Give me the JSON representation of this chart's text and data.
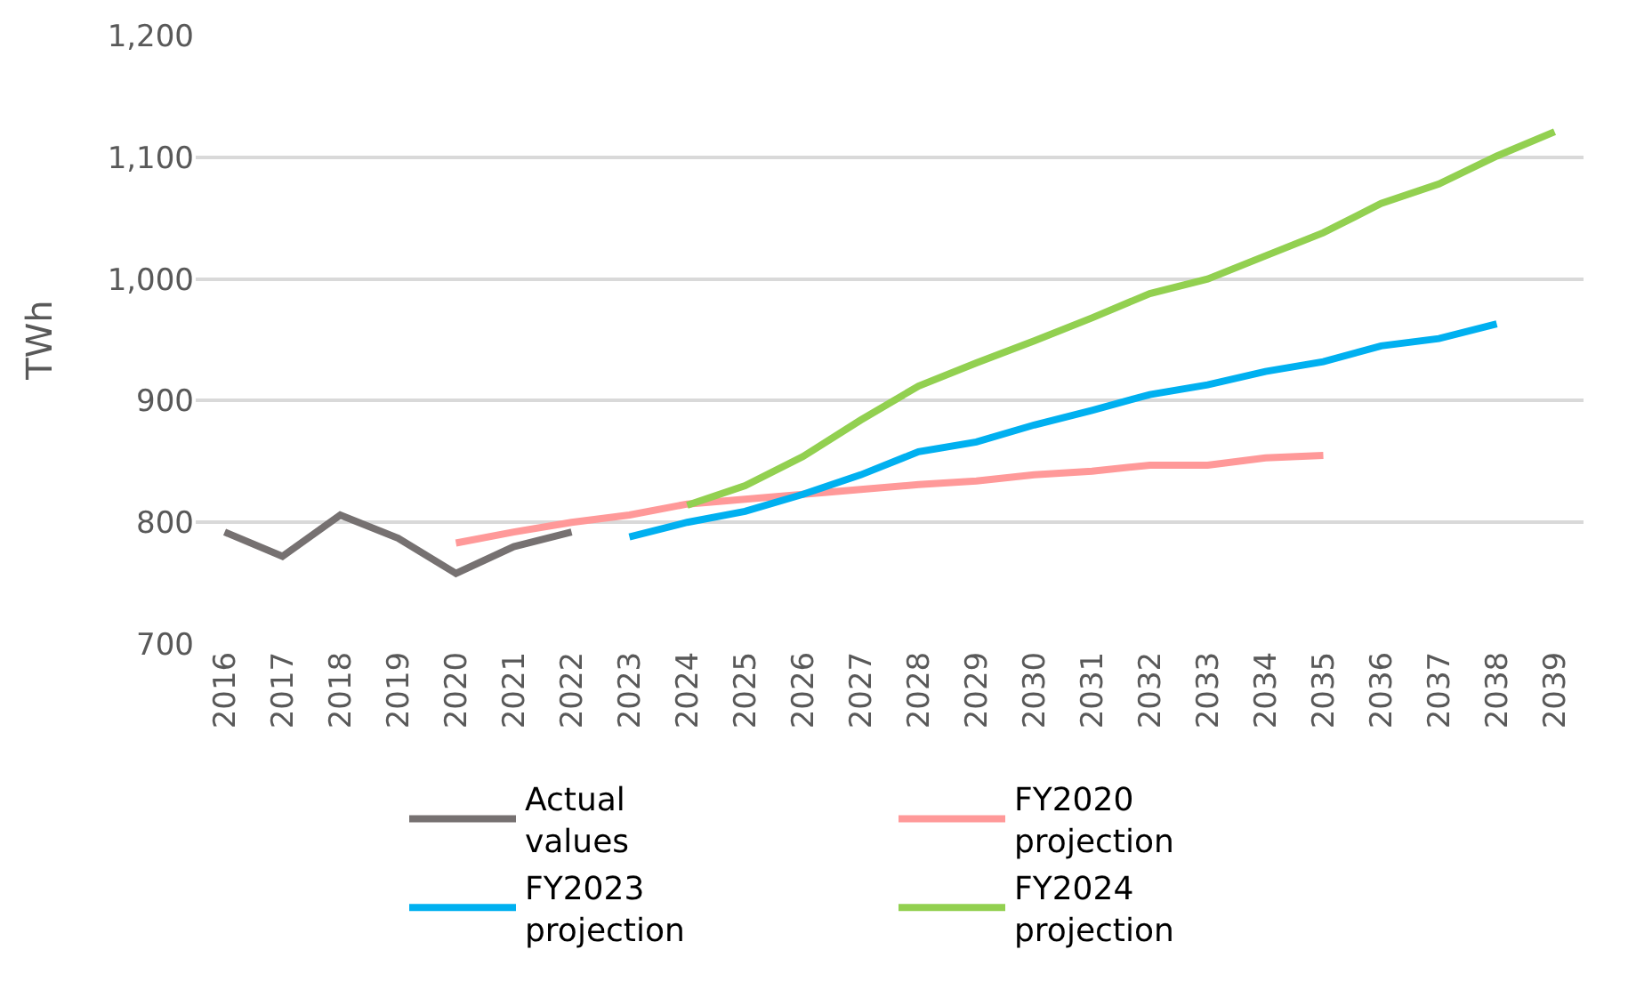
{
  "chart_data": {
    "type": "line",
    "ylabel": "TWh",
    "categories": [
      "2016",
      "2017",
      "2018",
      "2019",
      "2020",
      "2021",
      "2022",
      "2023",
      "2024",
      "2025",
      "2026",
      "2027",
      "2028",
      "2029",
      "2030",
      "2031",
      "2032",
      "2033",
      "2034",
      "2035",
      "2036",
      "2037",
      "2038",
      "2039"
    ],
    "series": [
      {
        "name": "Actual values",
        "color": "#767171",
        "values": [
          792,
          772,
          806,
          787,
          758,
          780,
          792,
          null,
          null,
          null,
          null,
          null,
          null,
          null,
          null,
          null,
          null,
          null,
          null,
          null,
          null,
          null,
          null,
          null
        ]
      },
      {
        "name": "FY2020 projection",
        "color": "#ff9999",
        "values": [
          null,
          null,
          null,
          null,
          783,
          792,
          800,
          806,
          815,
          819,
          823,
          827,
          831,
          834,
          839,
          842,
          847,
          847,
          853,
          855,
          null,
          null,
          null,
          null
        ]
      },
      {
        "name": "FY2023 projection",
        "color": "#00b0f0",
        "values": [
          null,
          null,
          null,
          null,
          null,
          null,
          null,
          788,
          800,
          809,
          823,
          839,
          858,
          866,
          880,
          892,
          905,
          913,
          924,
          932,
          945,
          951,
          963,
          null
        ]
      },
      {
        "name": "FY2024 projection",
        "color": "#92d050",
        "values": [
          null,
          null,
          null,
          null,
          null,
          null,
          null,
          null,
          814,
          830,
          854,
          884,
          912,
          931,
          949,
          968,
          988,
          1000,
          1019,
          1038,
          1062,
          1078,
          1101,
          1121
        ]
      }
    ],
    "ylim": [
      700,
      1200
    ],
    "yticks": [
      {
        "value": 700,
        "label": "700"
      },
      {
        "value": 800,
        "label": "800"
      },
      {
        "value": 900,
        "label": "900"
      },
      {
        "value": 1000,
        "label": "1,000"
      },
      {
        "value": 1100,
        "label": "1,100"
      },
      {
        "value": 1200,
        "label": "1,200"
      }
    ],
    "grid": "y",
    "legend": "bottom",
    "marker": "none",
    "line_style": "solid"
  }
}
